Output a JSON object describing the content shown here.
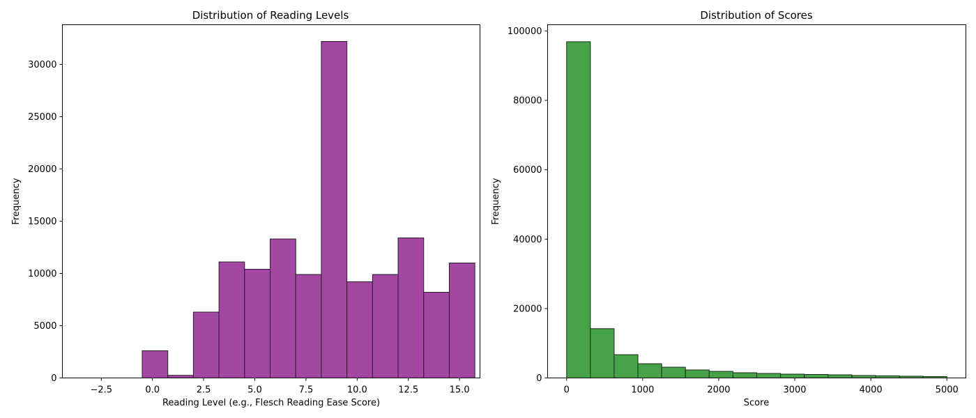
{
  "chart_data": [
    {
      "type": "bar",
      "title": "Distribution of Reading Levels",
      "xlabel": "Reading Level (e.g., Flesch Reading Ease Score)",
      "ylabel": "Frequency",
      "color": "#a347a3",
      "edge_color": "#2b1a2b",
      "xlim": [
        -4.4,
        16.0
      ],
      "ylim": [
        0,
        33800
      ],
      "xticks": [
        -2.5,
        0.0,
        2.5,
        5.0,
        7.5,
        10.0,
        12.5,
        15.0
      ],
      "xtick_labels": [
        "−2.5",
        "0.0",
        "2.5",
        "5.0",
        "7.5",
        "10.0",
        "12.5",
        "15.0"
      ],
      "yticks": [
        0,
        5000,
        10000,
        15000,
        20000,
        25000,
        30000
      ],
      "ytick_labels": [
        "0",
        "5000",
        "10000",
        "15000",
        "20000",
        "25000",
        "30000"
      ],
      "bins": [
        {
          "x0": -3.5,
          "x1": -2.25,
          "value": 0
        },
        {
          "x0": -2.25,
          "x1": -1.0,
          "value": 0
        },
        {
          "x0": -1.0,
          "x1": -0.5,
          "value": 0
        },
        {
          "x0": -0.5,
          "x1": 0.75,
          "value": 2600
        },
        {
          "x0": 0.75,
          "x1": 2.0,
          "value": 250
        },
        {
          "x0": 2.0,
          "x1": 3.25,
          "value": 6300
        },
        {
          "x0": 3.25,
          "x1": 4.5,
          "value": 11100
        },
        {
          "x0": 4.5,
          "x1": 5.75,
          "value": 10400
        },
        {
          "x0": 5.75,
          "x1": 7.0,
          "value": 13300
        },
        {
          "x0": 7.0,
          "x1": 8.25,
          "value": 9900
        },
        {
          "x0": 8.25,
          "x1": 9.5,
          "value": 32200
        },
        {
          "x0": 9.5,
          "x1": 10.75,
          "value": 9200
        },
        {
          "x0": 10.75,
          "x1": 12.0,
          "value": 9900
        },
        {
          "x0": 12.0,
          "x1": 13.25,
          "value": 13400
        },
        {
          "x0": 13.25,
          "x1": 14.5,
          "value": 8200
        },
        {
          "x0": 14.5,
          "x1": 15.75,
          "value": 11000
        }
      ]
    },
    {
      "type": "bar",
      "title": "Distribution of Scores",
      "xlabel": "Score",
      "ylabel": "Frequency",
      "color": "#47a347",
      "edge_color": "#1a2b1a",
      "xlim": [
        -250,
        5250
      ],
      "ylim": [
        0,
        101800
      ],
      "xticks": [
        0,
        1000,
        2000,
        3000,
        4000,
        5000
      ],
      "xtick_labels": [
        "0",
        "1000",
        "2000",
        "3000",
        "4000",
        "5000"
      ],
      "yticks": [
        0,
        20000,
        40000,
        60000,
        80000,
        100000
      ],
      "ytick_labels": [
        "0",
        "20000",
        "40000",
        "60000",
        "80000",
        "100000"
      ],
      "bins": [
        {
          "x0": 0,
          "x1": 312.5,
          "value": 96900
        },
        {
          "x0": 312.5,
          "x1": 625,
          "value": 14200
        },
        {
          "x0": 625,
          "x1": 937.5,
          "value": 6700
        },
        {
          "x0": 937.5,
          "x1": 1250,
          "value": 4100
        },
        {
          "x0": 1250,
          "x1": 1562.5,
          "value": 3100
        },
        {
          "x0": 1562.5,
          "x1": 1875,
          "value": 2300
        },
        {
          "x0": 1875,
          "x1": 2187.5,
          "value": 1900
        },
        {
          "x0": 2187.5,
          "x1": 2500,
          "value": 1500
        },
        {
          "x0": 2500,
          "x1": 2812.5,
          "value": 1300
        },
        {
          "x0": 2812.5,
          "x1": 3125,
          "value": 1100
        },
        {
          "x0": 3125,
          "x1": 3437.5,
          "value": 1000
        },
        {
          "x0": 3437.5,
          "x1": 3750,
          "value": 900
        },
        {
          "x0": 3750,
          "x1": 4062.5,
          "value": 700
        },
        {
          "x0": 4062.5,
          "x1": 4375,
          "value": 600
        },
        {
          "x0": 4375,
          "x1": 4687.5,
          "value": 500
        },
        {
          "x0": 4687.5,
          "x1": 5000,
          "value": 400
        }
      ]
    }
  ]
}
